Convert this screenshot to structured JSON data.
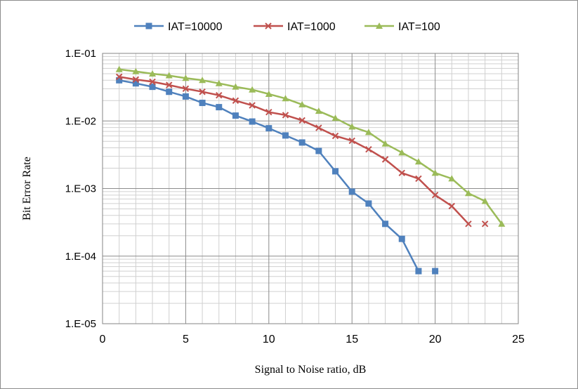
{
  "chart_data": {
    "type": "line",
    "title": "",
    "xlabel": "Signal to Noise ratio, dB",
    "ylabel": "Bit Error Rate",
    "xlim": [
      0,
      25
    ],
    "ylim": [
      1e-05,
      0.1
    ],
    "yscale": "log",
    "x_ticks": [
      0,
      5,
      10,
      15,
      20,
      25
    ],
    "x_tick_labels": [
      "0",
      "5",
      "10",
      "15",
      "20",
      "25"
    ],
    "y_ticks": [
      1e-05,
      0.0001,
      0.001,
      0.01,
      0.1
    ],
    "y_tick_labels": [
      "1.E-05",
      "1.E-04",
      "1.E-03",
      "1.E-02",
      "1.E-01"
    ],
    "grid": true,
    "legend_position": "top",
    "series": [
      {
        "name": "IAT=10000",
        "color": "#4f81bd",
        "marker": "square",
        "x": [
          1,
          2,
          3,
          4,
          5,
          6,
          7,
          8,
          9,
          10,
          11,
          12,
          13,
          14,
          15,
          16,
          17,
          18,
          19,
          20
        ],
        "y": [
          0.04,
          0.036,
          0.032,
          0.027,
          0.023,
          0.0185,
          0.016,
          0.012,
          0.0098,
          0.0078,
          0.0061,
          0.0048,
          0.0036,
          0.0018,
          0.0009,
          0.0006,
          0.0003,
          0.00018,
          6e-05,
          6e-05
        ],
        "connected_points": 19
      },
      {
        "name": "IAT=1000",
        "color": "#c0504d",
        "marker": "x",
        "x": [
          1,
          2,
          3,
          4,
          5,
          6,
          7,
          8,
          9,
          10,
          11,
          12,
          13,
          14,
          15,
          16,
          17,
          18,
          19,
          20,
          21,
          22,
          23
        ],
        "y": [
          0.045,
          0.041,
          0.038,
          0.034,
          0.03,
          0.027,
          0.024,
          0.02,
          0.017,
          0.0135,
          0.0122,
          0.0102,
          0.0079,
          0.006,
          0.0051,
          0.0038,
          0.0027,
          0.0017,
          0.0014,
          0.0008,
          0.00055,
          0.0003,
          0.0003
        ],
        "connected_points": 22
      },
      {
        "name": "IAT=100",
        "color": "#9bbb59",
        "marker": "triangle",
        "x": [
          1,
          2,
          3,
          4,
          5,
          6,
          7,
          8,
          9,
          10,
          11,
          12,
          13,
          14,
          15,
          16,
          17,
          18,
          19,
          20,
          21,
          22,
          23,
          24
        ],
        "y": [
          0.058,
          0.054,
          0.05,
          0.047,
          0.043,
          0.04,
          0.036,
          0.032,
          0.029,
          0.025,
          0.0215,
          0.0175,
          0.014,
          0.011,
          0.0082,
          0.0068,
          0.0046,
          0.0034,
          0.0025,
          0.0017,
          0.0014,
          0.00085,
          0.00065,
          0.0003
        ],
        "connected_points": 24
      }
    ]
  }
}
